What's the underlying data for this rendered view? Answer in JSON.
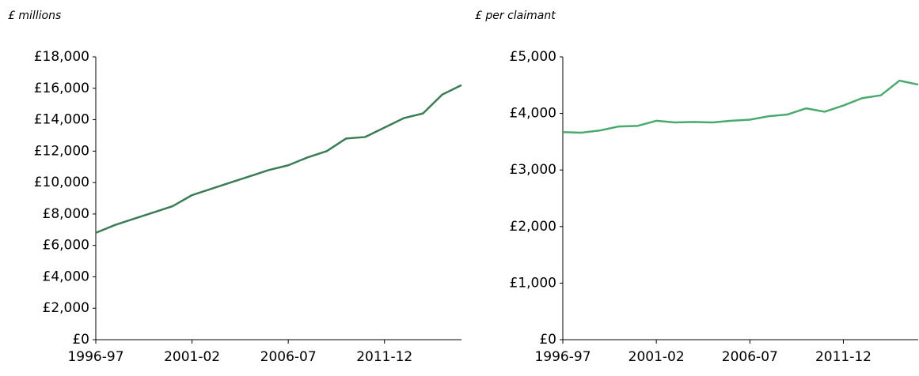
{
  "chart_data": [
    {
      "type": "line",
      "ylabel": "£ millions",
      "categories": [
        "1996-97",
        null,
        null,
        null,
        null,
        "2001-02",
        null,
        null,
        null,
        null,
        "2006-07",
        null,
        null,
        null,
        null,
        "2011-12",
        null,
        null,
        null,
        null
      ],
      "values": [
        6800,
        7300,
        7700,
        8100,
        8500,
        9200,
        9600,
        10000,
        10400,
        10800,
        11100,
        11600,
        12000,
        12800,
        12900,
        13500,
        14100,
        14400,
        15600,
        16200
      ],
      "color": "#3a7d55",
      "ylim": [
        0,
        18000
      ],
      "yticks": [
        {
          "value": 0,
          "label": "£0"
        },
        {
          "value": 2000,
          "label": "£2,000"
        },
        {
          "value": 4000,
          "label": "£4,000"
        },
        {
          "value": 6000,
          "label": "£6,000"
        },
        {
          "value": 8000,
          "label": "£8,000"
        },
        {
          "value": 10000,
          "label": "£10,000"
        },
        {
          "value": 12000,
          "label": "£12,000"
        },
        {
          "value": 14000,
          "label": "£14,000"
        },
        {
          "value": 16000,
          "label": "£16,000"
        },
        {
          "value": 18000,
          "label": "£18,000"
        }
      ]
    },
    {
      "type": "line",
      "ylabel": "£ per claimant",
      "categories": [
        "1996-97",
        null,
        null,
        null,
        null,
        "2001-02",
        null,
        null,
        null,
        null,
        "2006-07",
        null,
        null,
        null,
        null,
        "2011-12",
        null,
        null,
        null,
        null
      ],
      "values": [
        3670,
        3660,
        3700,
        3770,
        3780,
        3870,
        3840,
        3850,
        3840,
        3870,
        3890,
        3950,
        3980,
        4090,
        4030,
        4140,
        4270,
        4320,
        4580,
        4510
      ],
      "color": "#4aaa6e",
      "ylim": [
        0,
        5000
      ],
      "yticks": [
        {
          "value": 0,
          "label": "£0"
        },
        {
          "value": 1000,
          "label": "£1,000"
        },
        {
          "value": 2000,
          "label": "£2,000"
        },
        {
          "value": 3000,
          "label": "£3,000"
        },
        {
          "value": 4000,
          "label": "£4,000"
        },
        {
          "value": 5000,
          "label": "£5,000"
        }
      ]
    }
  ]
}
